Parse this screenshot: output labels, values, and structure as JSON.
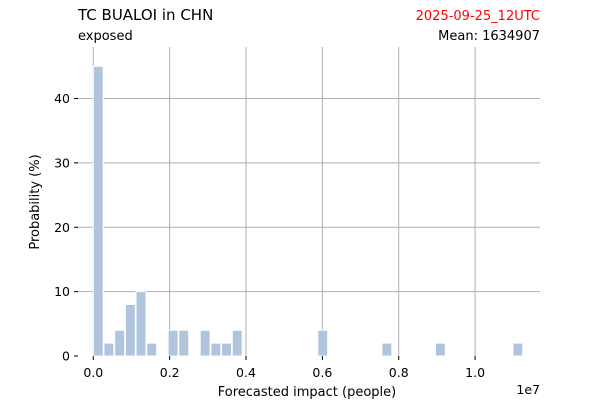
{
  "header": {
    "title": "TC BUALOI in CHN",
    "subtitle": "exposed",
    "date": "2025-09-25_12UTC",
    "mean": "Mean: 1634907",
    "date_color": "#ff0000"
  },
  "chart_data": {
    "type": "bar",
    "title": "TC BUALOI in CHN",
    "xlabel": "Forecasted impact (people)",
    "ylabel": "Probability (%)",
    "x_offset_label": "1e7",
    "xlim": [
      -0.04,
      1.17
    ],
    "ylim": [
      0,
      48
    ],
    "x_unit_scale": 10000000,
    "bar_width": 0.026,
    "bar_color": "#b0c4de",
    "grid": true,
    "x_ticks": [
      0.0,
      0.2,
      0.4,
      0.6,
      0.8,
      1.0
    ],
    "x_tick_labels": [
      "0.0",
      "0.2",
      "0.4",
      "0.6",
      "0.8",
      "1.0"
    ],
    "y_ticks": [
      0,
      10,
      20,
      30,
      40
    ],
    "y_tick_labels": [
      "0",
      "10",
      "20",
      "30",
      "40"
    ],
    "bars": [
      {
        "x": 0.013,
        "value": 45
      },
      {
        "x": 0.041,
        "value": 2
      },
      {
        "x": 0.069,
        "value": 4
      },
      {
        "x": 0.097,
        "value": 8
      },
      {
        "x": 0.125,
        "value": 10
      },
      {
        "x": 0.153,
        "value": 2
      },
      {
        "x": 0.209,
        "value": 4
      },
      {
        "x": 0.237,
        "value": 4
      },
      {
        "x": 0.293,
        "value": 4
      },
      {
        "x": 0.321,
        "value": 2
      },
      {
        "x": 0.349,
        "value": 2
      },
      {
        "x": 0.377,
        "value": 4
      },
      {
        "x": 0.601,
        "value": 4
      },
      {
        "x": 0.769,
        "value": 2
      },
      {
        "x": 0.909,
        "value": 2
      },
      {
        "x": 1.112,
        "value": 2
      }
    ]
  }
}
